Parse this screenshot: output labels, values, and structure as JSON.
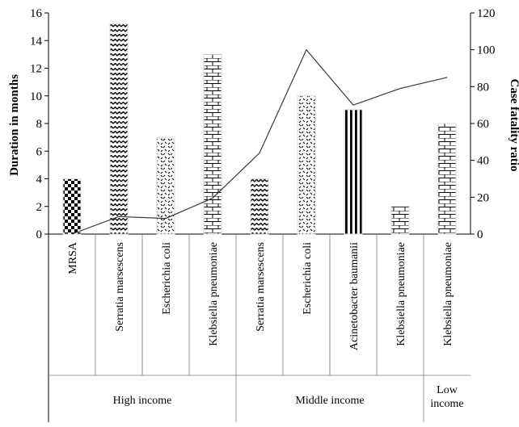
{
  "chart_data": {
    "type": "bar",
    "categories": [
      "MRSA",
      "Serratia marsescens",
      "Escherichia coli",
      "Klebsiella pneumoniae",
      "Serratia marsescens",
      "Escherichia coli",
      "Acinetobacter baumanii",
      "Klebsiella pneumoniae",
      "Klebsiella pneumoniae"
    ],
    "groups": [
      {
        "label": "High income",
        "lines": [
          "High income"
        ],
        "count": 4
      },
      {
        "label": "Middle income",
        "lines": [
          "Middle income"
        ],
        "count": 4
      },
      {
        "label": "Low income",
        "lines": [
          "Low",
          "income"
        ],
        "count": 1
      }
    ],
    "series": [
      {
        "type": "bar",
        "axis": "left",
        "values": [
          4,
          15.2,
          7,
          13,
          4,
          10,
          9,
          2,
          8
        ],
        "patterns": [
          "checker",
          "wave",
          "dots",
          "brick",
          "wave",
          "dots",
          "vstripe",
          "brick",
          "brick"
        ]
      },
      {
        "type": "line",
        "axis": "right",
        "color": "#3a3a3a",
        "values": [
          0,
          9.5,
          8.5,
          19.5,
          44,
          100,
          70,
          79,
          85
        ]
      }
    ],
    "ylabel": "Duration in months",
    "y2label": "Case fatality ratio",
    "ylim": [
      0,
      16
    ],
    "y2lim": [
      0,
      120
    ],
    "yticks": [
      0,
      2,
      4,
      6,
      8,
      10,
      12,
      14,
      16
    ],
    "y2ticks": [
      0,
      20,
      40,
      60,
      80,
      100,
      120
    ],
    "grid": false,
    "legend": "none"
  }
}
